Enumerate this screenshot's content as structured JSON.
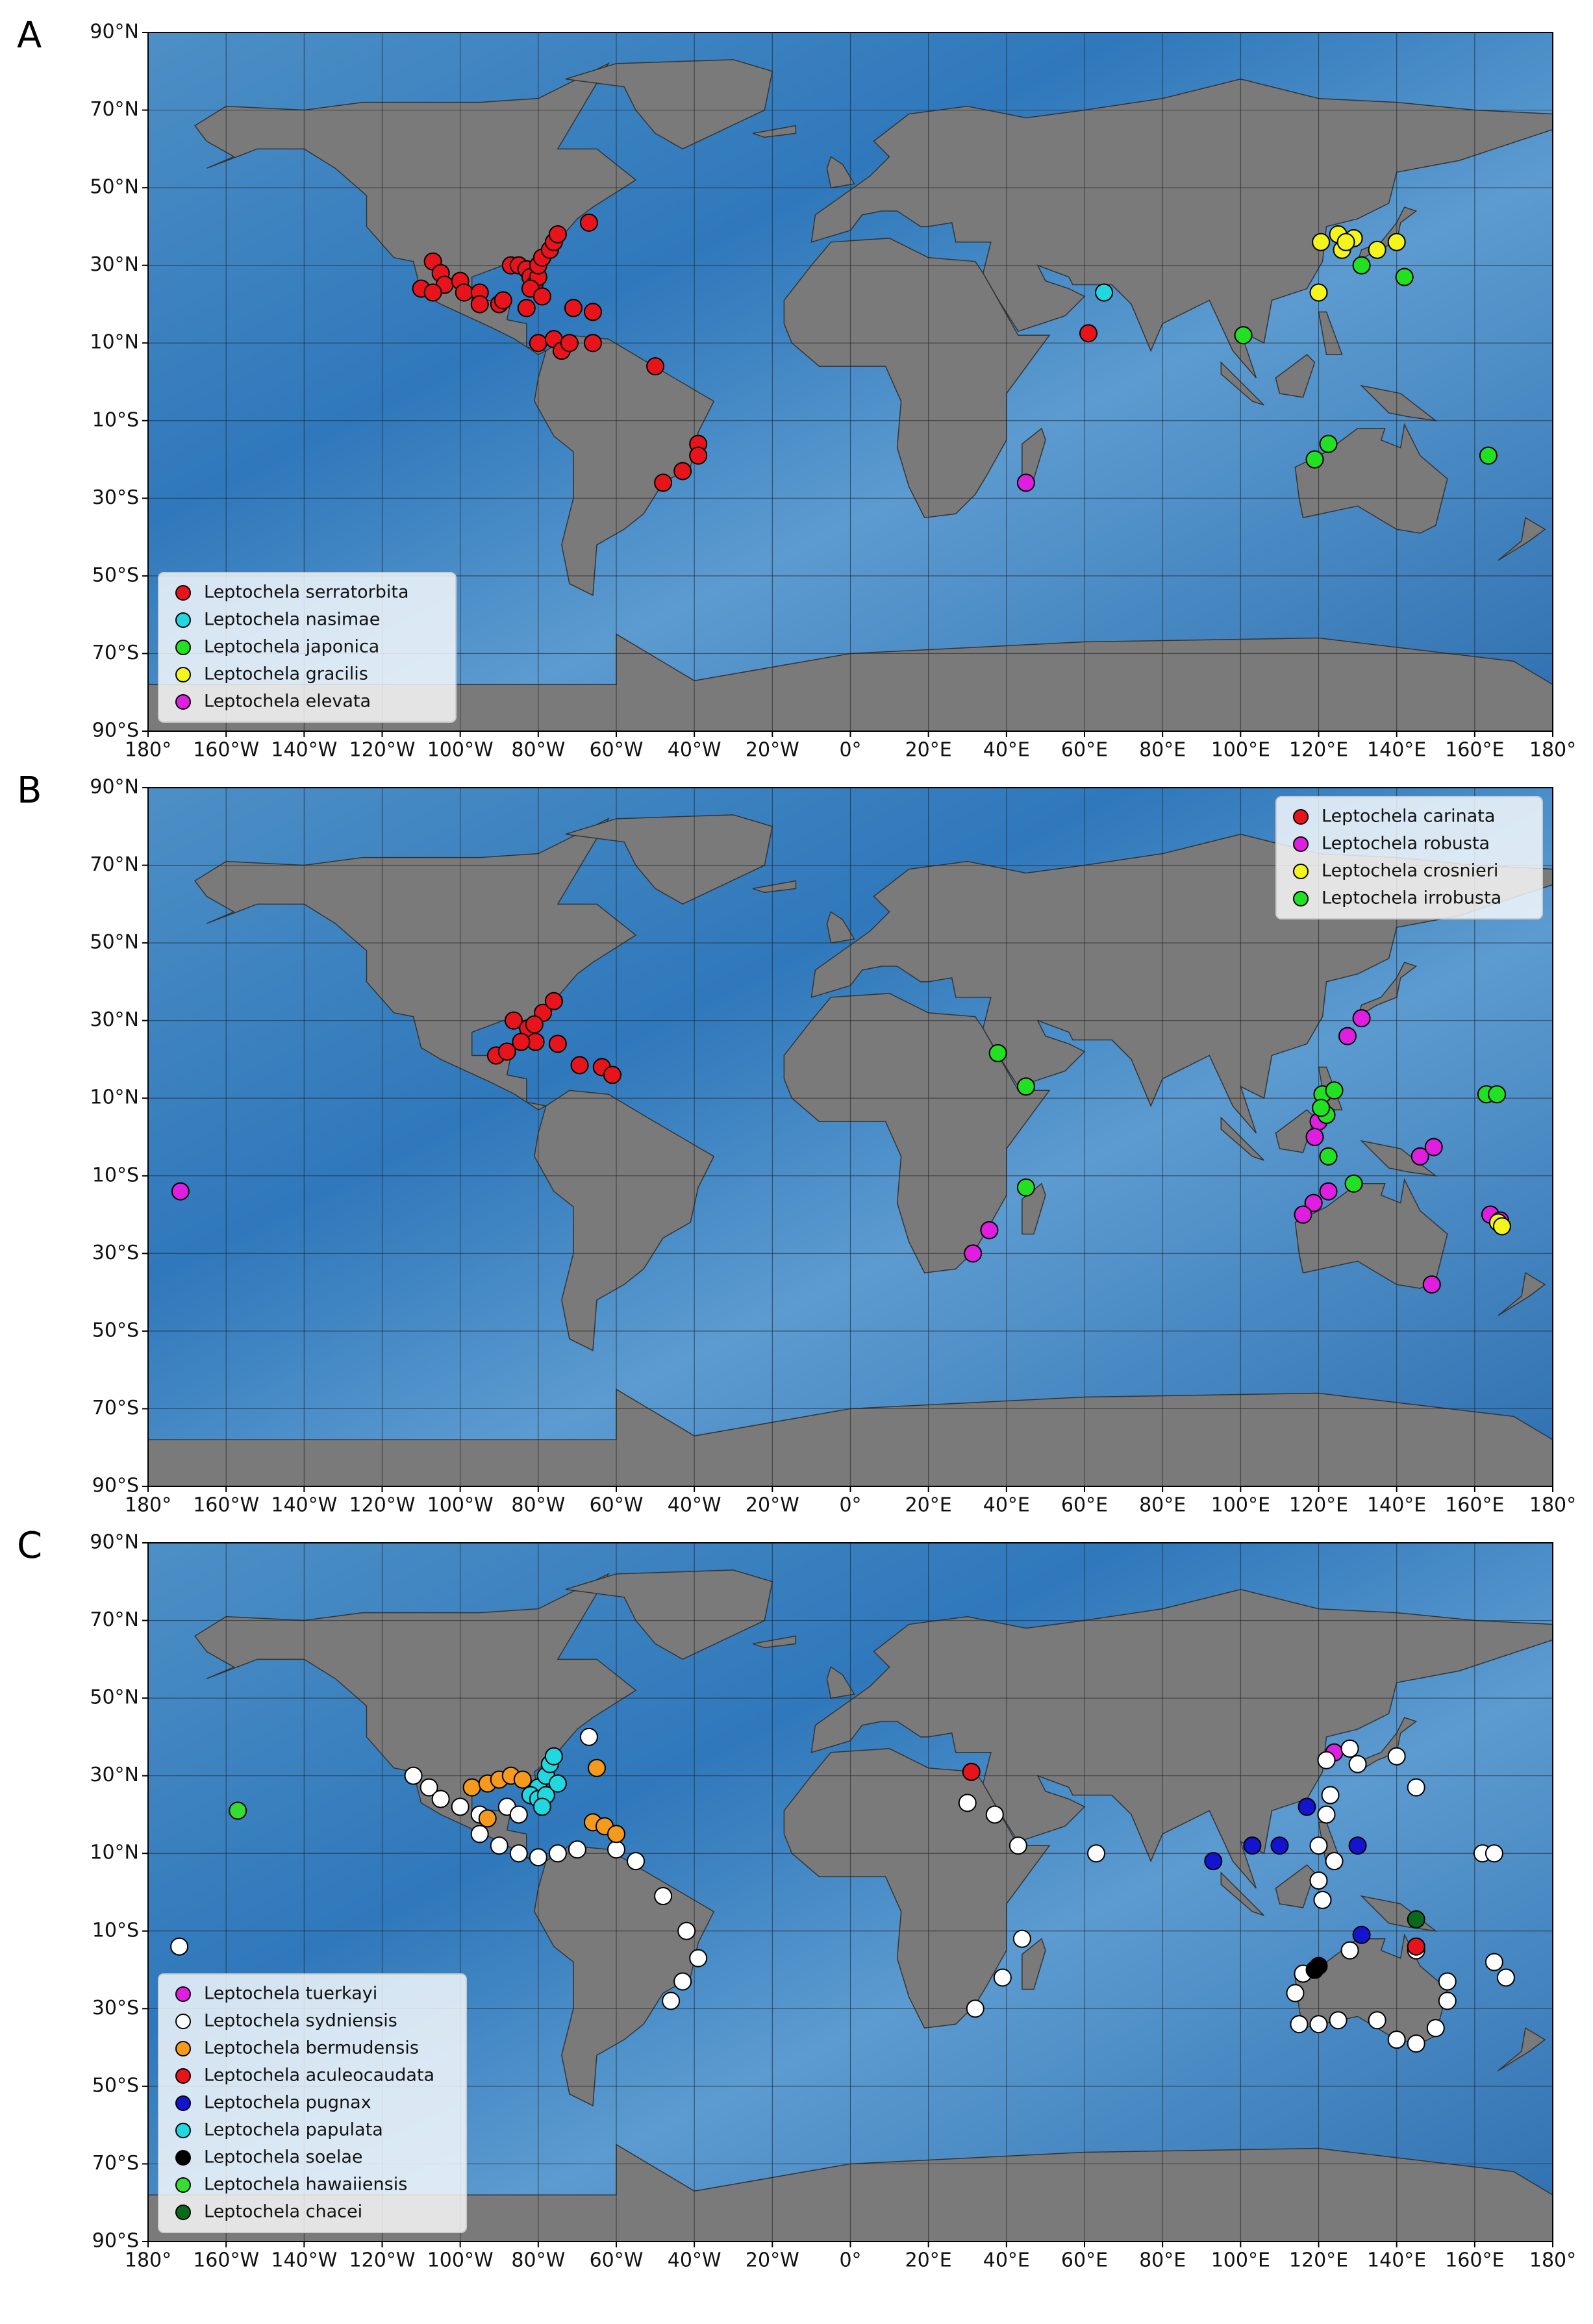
{
  "chart_data": [
    {
      "type": "scatter",
      "panel_label": "A",
      "legend": "lower left",
      "xlim": [
        -180,
        180
      ],
      "ylim": [
        -90,
        90
      ],
      "xticks": [
        {
          "value": -180,
          "label": "180°"
        },
        {
          "value": -160,
          "label": "160°W"
        },
        {
          "value": -140,
          "label": "140°W"
        },
        {
          "value": -120,
          "label": "120°W"
        },
        {
          "value": -100,
          "label": "100°W"
        },
        {
          "value": -80,
          "label": "80°W"
        },
        {
          "value": -60,
          "label": "60°W"
        },
        {
          "value": -40,
          "label": "40°W"
        },
        {
          "value": -20,
          "label": "20°W"
        },
        {
          "value": 0,
          "label": "0°"
        },
        {
          "value": 20,
          "label": "20°E"
        },
        {
          "value": 40,
          "label": "40°E"
        },
        {
          "value": 60,
          "label": "60°E"
        },
        {
          "value": 80,
          "label": "80°E"
        },
        {
          "value": 100,
          "label": "100°E"
        },
        {
          "value": 120,
          "label": "120°E"
        },
        {
          "value": 140,
          "label": "140°E"
        },
        {
          "value": 160,
          "label": "160°E"
        },
        {
          "value": 180,
          "label": "180°"
        }
      ],
      "yticks": [
        {
          "value": -90,
          "label": "90°S"
        },
        {
          "value": -70,
          "label": "70°S"
        },
        {
          "value": -50,
          "label": "50°S"
        },
        {
          "value": -30,
          "label": "30°S"
        },
        {
          "value": -10,
          "label": "10°S"
        },
        {
          "value": 10,
          "label": "10°N"
        },
        {
          "value": 30,
          "label": "30°N"
        },
        {
          "value": 50,
          "label": "50°N"
        },
        {
          "value": 70,
          "label": "70°N"
        },
        {
          "value": 90,
          "label": "90°N"
        }
      ],
      "grid": true,
      "series": [
        {
          "name": "Leptochela serratorbita",
          "color": "#e8141c",
          "x": [
            -107,
            -105,
            -104,
            -100,
            -99,
            -110,
            -107,
            -95,
            -95,
            -90,
            -89,
            -87,
            -85,
            -83,
            -82,
            -81,
            -80,
            -80,
            -79,
            -77,
            -76,
            -75,
            -82,
            -79,
            -67,
            -83,
            -71,
            -66,
            -80,
            -76,
            -74,
            -72,
            -66,
            -50,
            -39,
            -39,
            -43,
            -48,
            61
          ],
          "y": [
            31,
            28,
            25,
            26,
            23,
            24,
            23,
            23,
            20,
            20,
            21,
            30,
            30,
            29,
            27,
            25,
            27,
            30,
            32,
            34,
            36,
            38,
            24,
            22,
            41,
            19,
            19,
            18,
            10,
            11,
            8,
            10,
            10,
            4,
            -16,
            -19,
            -23,
            -26,
            12.5
          ]
        },
        {
          "name": "Leptochela nasimae",
          "color": "#22d8e0",
          "x": [
            65
          ],
          "y": [
            23
          ]
        },
        {
          "name": "Leptochela japonica",
          "color": "#22e022",
          "x": [
            100.7,
            131,
            142,
            122.5,
            119,
            163.5
          ],
          "y": [
            12,
            30,
            27,
            -16,
            -20,
            -19
          ]
        },
        {
          "name": "Leptochela gracilis",
          "color": "#f5f51e",
          "x": [
            120.6,
            125,
            126,
            129,
            135,
            140,
            120,
            127
          ],
          "y": [
            36,
            38,
            34,
            37,
            34,
            36,
            23,
            36
          ]
        },
        {
          "name": "Leptochela elevata",
          "color": "#e01ee0",
          "x": [
            45
          ],
          "y": [
            -26
          ]
        }
      ]
    },
    {
      "type": "scatter",
      "panel_label": "B",
      "legend": "upper right",
      "xlim": [
        -180,
        180
      ],
      "ylim": [
        -90,
        90
      ],
      "xticks": [
        {
          "value": -180,
          "label": "180°"
        },
        {
          "value": -160,
          "label": "160°W"
        },
        {
          "value": -140,
          "label": "140°W"
        },
        {
          "value": -120,
          "label": "120°W"
        },
        {
          "value": -100,
          "label": "100°W"
        },
        {
          "value": -80,
          "label": "80°W"
        },
        {
          "value": -60,
          "label": "60°W"
        },
        {
          "value": -40,
          "label": "40°W"
        },
        {
          "value": -20,
          "label": "20°W"
        },
        {
          "value": 0,
          "label": "0°"
        },
        {
          "value": 20,
          "label": "20°E"
        },
        {
          "value": 40,
          "label": "40°E"
        },
        {
          "value": 60,
          "label": "60°E"
        },
        {
          "value": 80,
          "label": "80°E"
        },
        {
          "value": 100,
          "label": "100°E"
        },
        {
          "value": 120,
          "label": "120°E"
        },
        {
          "value": 140,
          "label": "140°E"
        },
        {
          "value": 160,
          "label": "160°E"
        },
        {
          "value": 180,
          "label": "180°"
        }
      ],
      "yticks": [
        {
          "value": -90,
          "label": "90°S"
        },
        {
          "value": -70,
          "label": "70°S"
        },
        {
          "value": -50,
          "label": "50°S"
        },
        {
          "value": -30,
          "label": "30°S"
        },
        {
          "value": -10,
          "label": "10°S"
        },
        {
          "value": 10,
          "label": "10°N"
        },
        {
          "value": 30,
          "label": "30°N"
        },
        {
          "value": 50,
          "label": "50°N"
        },
        {
          "value": 70,
          "label": "70°N"
        },
        {
          "value": 90,
          "label": "90°N"
        }
      ],
      "grid": true,
      "series": [
        {
          "name": "Leptochela carinata",
          "color": "#e8141c",
          "x": [
            -86.3,
            -82.6,
            -78.8,
            -76,
            -80.7,
            -84.4,
            -90.8,
            -88,
            -75,
            -69.4,
            -63.7,
            -61,
            -81
          ],
          "y": [
            30,
            28,
            32,
            35,
            24.5,
            24.5,
            21,
            22,
            24,
            18.5,
            18,
            16,
            29
          ]
        },
        {
          "name": "Leptochela robusta",
          "color": "#e01ee0",
          "x": [
            -171.7,
            131,
            127.4,
            120,
            119,
            146,
            149.5,
            122.5,
            118.7,
            116,
            164,
            166.5,
            149,
            35.6,
            31.4
          ],
          "y": [
            -14,
            30.6,
            26,
            4,
            0,
            -5,
            -2.6,
            -14,
            -17,
            -20,
            -20,
            -21.5,
            -38,
            -24,
            -30
          ]
        },
        {
          "name": "Leptochela crosnieri",
          "color": "#f5f51e",
          "x": [
            166,
            167
          ],
          "y": [
            -22,
            -23
          ]
        },
        {
          "name": "Leptochela irrobusta",
          "color": "#22e022",
          "x": [
            37.8,
            45,
            45,
            121,
            122,
            124,
            122.5,
            129,
            163,
            165.7,
            120.6
          ],
          "y": [
            21.6,
            13,
            -13,
            11,
            5.7,
            12,
            -5,
            -12,
            11,
            11,
            7.5
          ]
        }
      ]
    },
    {
      "type": "scatter",
      "panel_label": "C",
      "legend": "lower left",
      "xlim": [
        -180,
        180
      ],
      "ylim": [
        -90,
        90
      ],
      "xticks": [
        {
          "value": -180,
          "label": "180°"
        },
        {
          "value": -160,
          "label": "160°W"
        },
        {
          "value": -140,
          "label": "140°W"
        },
        {
          "value": -120,
          "label": "120°W"
        },
        {
          "value": -100,
          "label": "100°W"
        },
        {
          "value": -80,
          "label": "80°W"
        },
        {
          "value": -60,
          "label": "60°W"
        },
        {
          "value": -40,
          "label": "40°W"
        },
        {
          "value": -20,
          "label": "20°W"
        },
        {
          "value": 0,
          "label": "0°"
        },
        {
          "value": 20,
          "label": "20°E"
        },
        {
          "value": 40,
          "label": "40°E"
        },
        {
          "value": 60,
          "label": "60°E"
        },
        {
          "value": 80,
          "label": "80°E"
        },
        {
          "value": 100,
          "label": "100°E"
        },
        {
          "value": 120,
          "label": "120°E"
        },
        {
          "value": 140,
          "label": "140°E"
        },
        {
          "value": 160,
          "label": "160°E"
        },
        {
          "value": 180,
          "label": "180°"
        }
      ],
      "yticks": [
        {
          "value": -90,
          "label": "90°S"
        },
        {
          "value": -70,
          "label": "70°S"
        },
        {
          "value": -50,
          "label": "50°S"
        },
        {
          "value": -30,
          "label": "30°S"
        },
        {
          "value": -10,
          "label": "10°S"
        },
        {
          "value": 10,
          "label": "10°N"
        },
        {
          "value": 30,
          "label": "30°N"
        },
        {
          "value": 50,
          "label": "50°N"
        },
        {
          "value": 70,
          "label": "70°N"
        },
        {
          "value": 90,
          "label": "90°N"
        }
      ],
      "grid": true,
      "series": [
        {
          "name": "Leptochela tuerkayi",
          "color": "#e01ee0",
          "x": [
            124
          ],
          "y": [
            36
          ]
        },
        {
          "name": "Leptochela sydniensis",
          "color": "#ffffff",
          "x": [
            -112,
            -108,
            -105,
            -100,
            -95,
            -88,
            -85,
            -95,
            -90,
            -85,
            -80,
            -75,
            -70,
            -60,
            -55,
            -48,
            -42,
            -39,
            -43,
            -46,
            -67,
            -172,
            30,
            37,
            43,
            63,
            44,
            39,
            32,
            162,
            165,
            128,
            122,
            130,
            140,
            145,
            123,
            122,
            120,
            124,
            120,
            121,
            116,
            114,
            115,
            120,
            125,
            135,
            140,
            145,
            150,
            153,
            153,
            145,
            128,
            165,
            168
          ],
          "y": [
            30,
            27,
            24,
            22,
            20,
            22,
            20,
            15,
            12,
            10,
            9,
            10,
            11,
            11,
            8,
            -1,
            -10,
            -17,
            -23,
            -28,
            40,
            -14,
            23,
            20,
            12,
            10,
            -12,
            -22,
            -30,
            10,
            10,
            37,
            34,
            33,
            35,
            27,
            25,
            20,
            12,
            8,
            3,
            -2,
            -21,
            -26,
            -34,
            -34,
            -33,
            -33,
            -38,
            -39,
            -35,
            -28,
            -23,
            -15,
            -15,
            -18,
            -22
          ]
        },
        {
          "name": "Leptochela bermudensis",
          "color": "#f59a1c",
          "x": [
            -97,
            -93,
            -90,
            -87,
            -84,
            -65,
            -66,
            -63,
            -60,
            -93
          ],
          "y": [
            27,
            28,
            29,
            30,
            29,
            32,
            18,
            17,
            15,
            19
          ]
        },
        {
          "name": "Leptochela aculeocaudata",
          "color": "#e8141c",
          "x": [
            31,
            145
          ],
          "y": [
            31,
            -14
          ]
        },
        {
          "name": "Leptochela pugnax",
          "color": "#1414d0",
          "x": [
            93,
            103,
            110,
            117,
            130,
            131
          ],
          "y": [
            8,
            12,
            12,
            22,
            12,
            -11
          ]
        },
        {
          "name": "Leptochela papulata",
          "color": "#22d8e0",
          "x": [
            -80,
            -78,
            -77,
            -76,
            -82,
            -80,
            -78,
            -79,
            -75
          ],
          "y": [
            27,
            30,
            33,
            35,
            25,
            24,
            25,
            22,
            28
          ]
        },
        {
          "name": "Leptochela soelae",
          "color": "#000000",
          "x": [
            119,
            120
          ],
          "y": [
            -20,
            -19
          ]
        },
        {
          "name": "Leptochela hawaiiensis",
          "color": "#33dd33",
          "x": [
            -157
          ],
          "y": [
            21
          ]
        },
        {
          "name": "Leptochela chacei",
          "color": "#0a6a1a",
          "x": [
            145
          ],
          "y": [
            -7
          ]
        }
      ]
    }
  ]
}
